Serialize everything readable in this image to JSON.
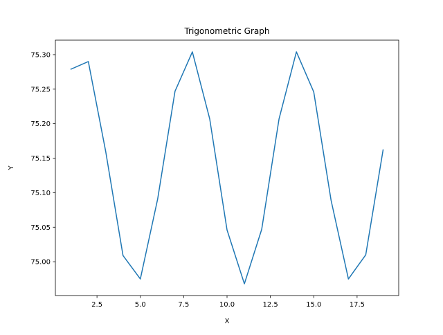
{
  "chart_data": {
    "type": "line",
    "title": "Trigonometric Graph",
    "xlabel": "X",
    "ylabel": "Y",
    "x": [
      1,
      2,
      3,
      4,
      5,
      6,
      7,
      8,
      9,
      10,
      11,
      12,
      13,
      14,
      15,
      16,
      17,
      18,
      19
    ],
    "series": [
      {
        "values": [
          75.279,
          75.29,
          75.16,
          75.009,
          74.975,
          75.091,
          75.247,
          75.304,
          75.207,
          75.046,
          74.968,
          75.047,
          75.207,
          75.304,
          75.246,
          75.089,
          74.975,
          75.01,
          75.162
        ],
        "color": "#1f77b4"
      }
    ],
    "xlim": [
      0.1,
      19.9
    ],
    "ylim": [
      74.951,
      75.321
    ],
    "xticks": [
      2.5,
      5.0,
      7.5,
      10.0,
      12.5,
      15.0,
      17.5
    ],
    "xtick_labels": [
      "2.5",
      "5.0",
      "7.5",
      "10.0",
      "12.5",
      "15.0",
      "17.5"
    ],
    "yticks": [
      75.0,
      75.05,
      75.1,
      75.15,
      75.2,
      75.25,
      75.3
    ],
    "ytick_labels": [
      "75.00",
      "75.05",
      "75.10",
      "75.15",
      "75.20",
      "75.25",
      "75.30"
    ],
    "grid": false,
    "legend": "none"
  }
}
